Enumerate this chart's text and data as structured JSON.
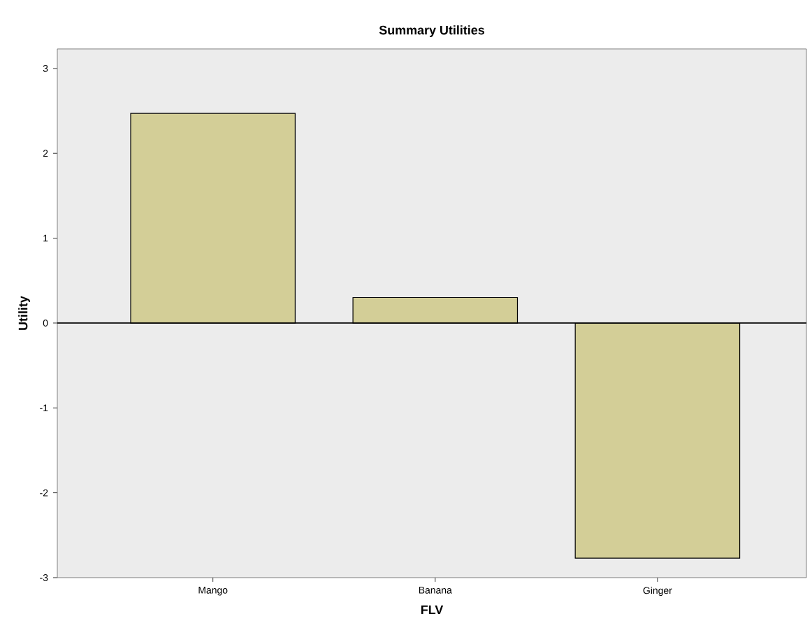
{
  "chart_data": {
    "type": "bar",
    "title": "Summary Utilities",
    "xlabel": "FLV",
    "ylabel": "Utility",
    "categories": [
      "Mango",
      "Banana",
      "Ginger"
    ],
    "values": [
      2.47,
      0.3,
      -2.77
    ],
    "color": "#d3ce97",
    "ylim": [
      -3,
      3.23
    ],
    "yticks": [
      -3,
      -2,
      -1,
      0,
      1,
      2,
      3
    ],
    "ref_lines": [
      {
        "axis": "y",
        "value": 0,
        "color": "#000000"
      }
    ]
  }
}
